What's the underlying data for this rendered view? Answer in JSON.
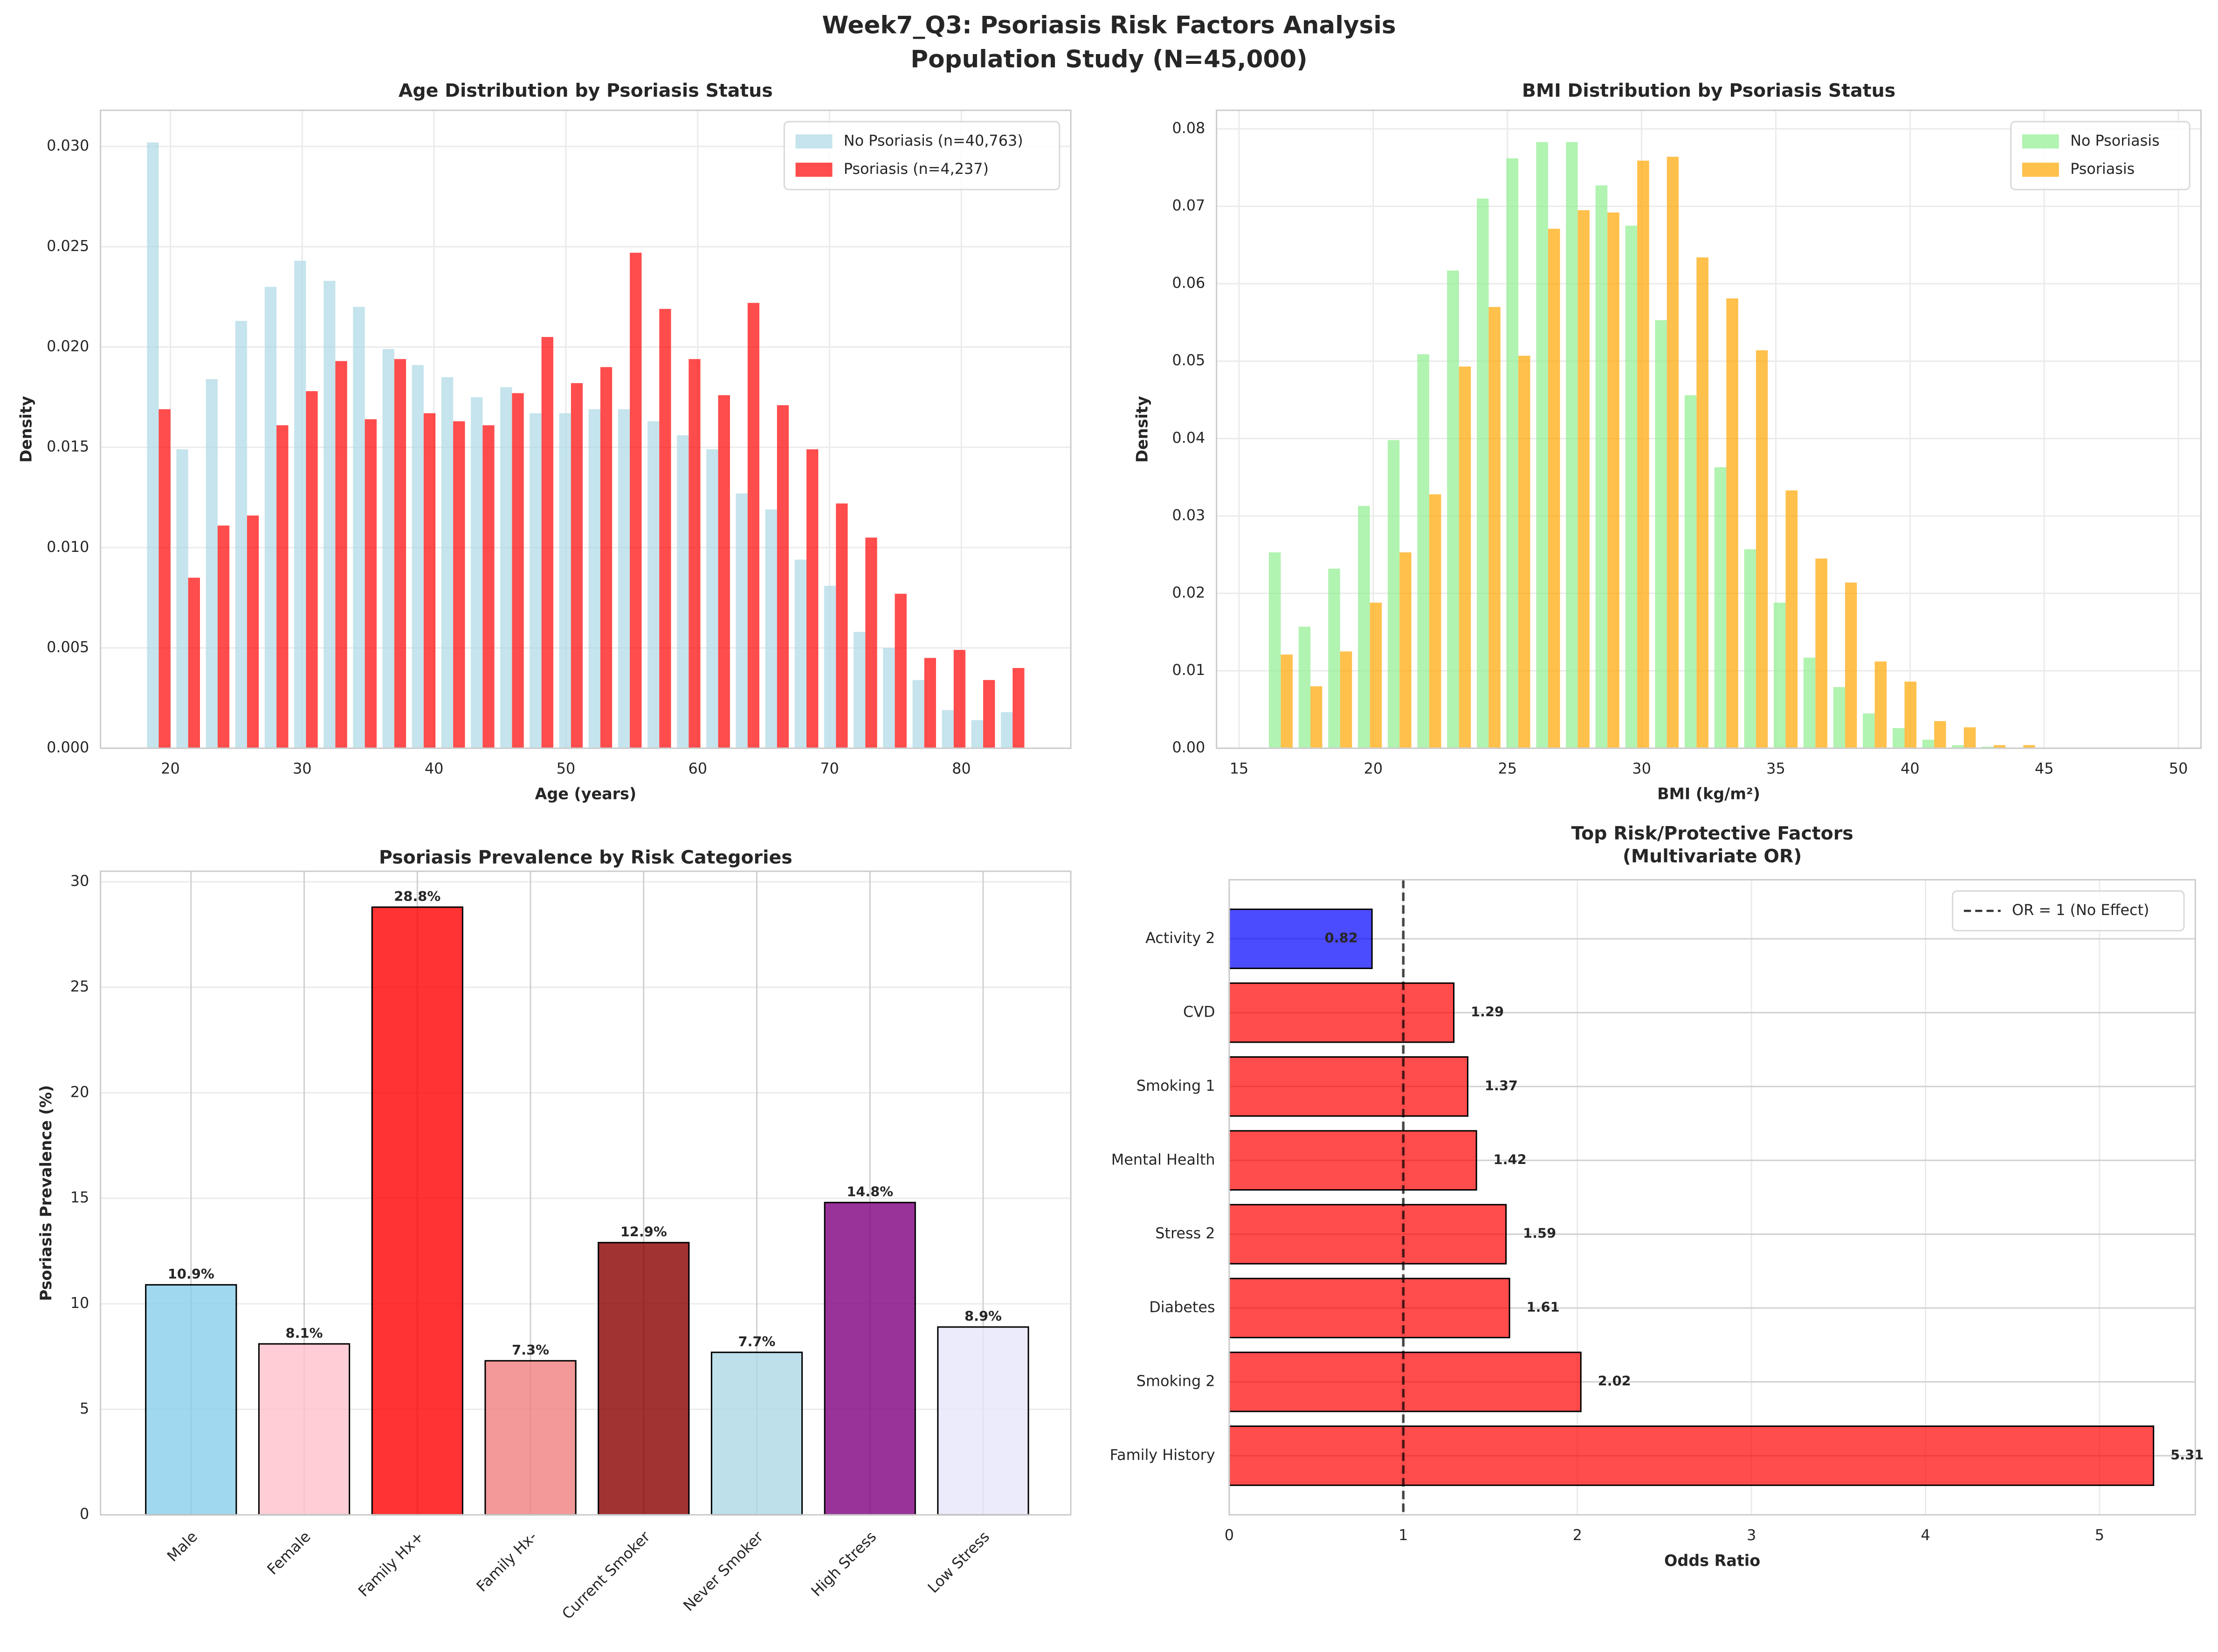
{
  "title": [
    "Week7_Q3: Psoriasis Risk Factors Analysis",
    "Population Study (N=45,000)"
  ],
  "chart_data": [
    {
      "type": "histogram",
      "title": "Age Distribution by Psoriasis Status",
      "xlabel": "Age (years)",
      "ylabel": "Density",
      "bins": [
        18,
        20.23,
        22.47,
        24.7,
        26.93,
        29.17,
        31.4,
        33.63,
        35.87,
        38.1,
        40.33,
        42.57,
        44.8,
        47.03,
        49.27,
        51.5,
        53.73,
        55.97,
        58.2,
        60.43,
        62.67,
        64.9,
        67.13,
        69.37,
        71.6,
        73.83,
        76.07,
        78.3,
        80.53,
        82.77,
        85
      ],
      "series": [
        {
          "name": "No Psoriasis (n=40,763)",
          "color": "#add8e6",
          "values": [
            0.0302,
            0.0149,
            0.0184,
            0.0213,
            0.023,
            0.0243,
            0.0233,
            0.022,
            0.0199,
            0.0191,
            0.0185,
            0.0175,
            0.018,
            0.0167,
            0.0167,
            0.0169,
            0.0169,
            0.0163,
            0.0156,
            0.0149,
            0.0127,
            0.0119,
            0.0094,
            0.0081,
            0.0058,
            0.005,
            0.0034,
            0.0019,
            0.0014,
            0.0018
          ]
        },
        {
          "name": "Psoriasis (n=4,237)",
          "color": "#ff0000",
          "values": [
            0.0169,
            0.0085,
            0.0111,
            0.0116,
            0.0161,
            0.0178,
            0.0193,
            0.0164,
            0.0194,
            0.0167,
            0.0163,
            0.0161,
            0.0177,
            0.0205,
            0.0182,
            0.019,
            0.0247,
            0.0219,
            0.0194,
            0.0176,
            0.0222,
            0.0171,
            0.0149,
            0.0122,
            0.0105,
            0.0077,
            0.0045,
            0.0049,
            0.0034,
            0.004
          ]
        }
      ],
      "alpha": 0.7,
      "xlim": [
        14.7,
        88.3
      ],
      "xticks": [
        20,
        30,
        40,
        50,
        60,
        70,
        80
      ],
      "ylim": [
        0,
        0.0318
      ],
      "yticks": [
        {
          "value": 0,
          "label": "0.000"
        },
        {
          "value": 0.005,
          "label": "0.005"
        },
        {
          "value": 0.01,
          "label": "0.010"
        },
        {
          "value": 0.015,
          "label": "0.015"
        },
        {
          "value": 0.02,
          "label": "0.020"
        },
        {
          "value": 0.025,
          "label": "0.025"
        },
        {
          "value": 0.03,
          "label": "0.030"
        }
      ],
      "grid": true,
      "legend": "upper right"
    },
    {
      "type": "histogram",
      "title": "BMI Distribution by Psoriasis Status",
      "xlabel": "BMI (kg/m²)",
      "ylabel": "Density",
      "bins": [
        16,
        17.11,
        18.21,
        19.32,
        20.43,
        21.53,
        22.64,
        23.75,
        24.85,
        25.96,
        27.07,
        28.17,
        29.28,
        30.39,
        31.49,
        32.6,
        33.71,
        34.81,
        35.92,
        37.03,
        38.13,
        39.24,
        40.35,
        41.45,
        42.56,
        43.67,
        44.77,
        45.88,
        46.99,
        48.09,
        49.2
      ],
      "series": [
        {
          "name": "No Psoriasis",
          "color": "#90ee90",
          "values": [
            0.0253,
            0.0157,
            0.0232,
            0.0313,
            0.0398,
            0.0509,
            0.0617,
            0.071,
            0.0762,
            0.0783,
            0.0783,
            0.0727,
            0.0675,
            0.0553,
            0.0456,
            0.0363,
            0.0257,
            0.0188,
            0.0117,
            0.0079,
            0.0045,
            0.0026,
            0.0011,
            0.0004,
            0.0002,
            0.0001,
            0,
            0,
            0,
            0
          ]
        },
        {
          "name": "Psoriasis",
          "color": "#ffa500",
          "values": [
            0.0121,
            0.008,
            0.0125,
            0.0188,
            0.0253,
            0.0328,
            0.0493,
            0.057,
            0.0507,
            0.0671,
            0.0695,
            0.0692,
            0.0759,
            0.0764,
            0.0634,
            0.0581,
            0.0514,
            0.0333,
            0.0245,
            0.0214,
            0.0112,
            0.0086,
            0.0035,
            0.0027,
            0.0004,
            0.0004,
            0,
            0,
            0,
            0
          ]
        }
      ],
      "alpha": 0.7,
      "xlim": [
        14.16,
        50.84
      ],
      "xticks": [
        15,
        20,
        25,
        30,
        35,
        40,
        45,
        50
      ],
      "ylim": [
        0,
        0.0824
      ],
      "yticks": [
        {
          "value": 0,
          "label": "0.00"
        },
        0.01,
        0.02,
        0.03,
        0.04,
        0.05,
        0.06,
        0.07,
        0.08
      ],
      "grid": true,
      "legend": "upper right"
    },
    {
      "type": "bar",
      "title": "Psoriasis Prevalence by Risk Categories",
      "ylabel": "Psoriasis Prevalence (%)",
      "categories": [
        "Male",
        "Female",
        "Family Hx+",
        "Family Hx-",
        "Current Smoker",
        "Never Smoker",
        "High Stress",
        "Low Stress"
      ],
      "values": [
        10.9,
        8.1,
        28.8,
        7.3,
        12.9,
        7.7,
        14.8,
        8.9
      ],
      "value_labels": [
        "10.9%",
        "8.1%",
        "28.8%",
        "7.3%",
        "12.9%",
        "7.7%",
        "14.8%",
        "8.9%"
      ],
      "colors": [
        "#87ceeb",
        "#ffc0cb",
        "#ff0000",
        "#f08080",
        "#8b0000",
        "#add8e6",
        "#800080",
        "#e6e6fa"
      ],
      "alpha": 0.8,
      "ylim": [
        0,
        30.5
      ],
      "yticks": [
        0,
        5,
        10,
        15,
        20,
        25,
        30
      ],
      "grid": true
    },
    {
      "type": "barh",
      "title": "Top Risk/Protective Factors\n(Multivariate OR)",
      "xlabel": "Odds Ratio",
      "categories": [
        "Family History",
        "Smoking 2",
        "Diabetes",
        "Stress 2",
        "Mental Health",
        "Smoking 1",
        "CVD",
        "Activity 2"
      ],
      "values": [
        5.31,
        2.02,
        1.61,
        1.59,
        1.42,
        1.37,
        1.29,
        0.82
      ],
      "colors": [
        "#ff0000",
        "#ff0000",
        "#ff0000",
        "#ff0000",
        "#ff0000",
        "#ff0000",
        "#ff0000",
        "#0000ff"
      ],
      "alpha": 0.7,
      "ref_line": {
        "value": 1,
        "label": "OR = 1 (No Effect)"
      },
      "xlim": [
        0,
        5.55
      ],
      "xticks": [
        0,
        1,
        2,
        3,
        4,
        5
      ],
      "grid": true,
      "legend": "upper right"
    }
  ]
}
